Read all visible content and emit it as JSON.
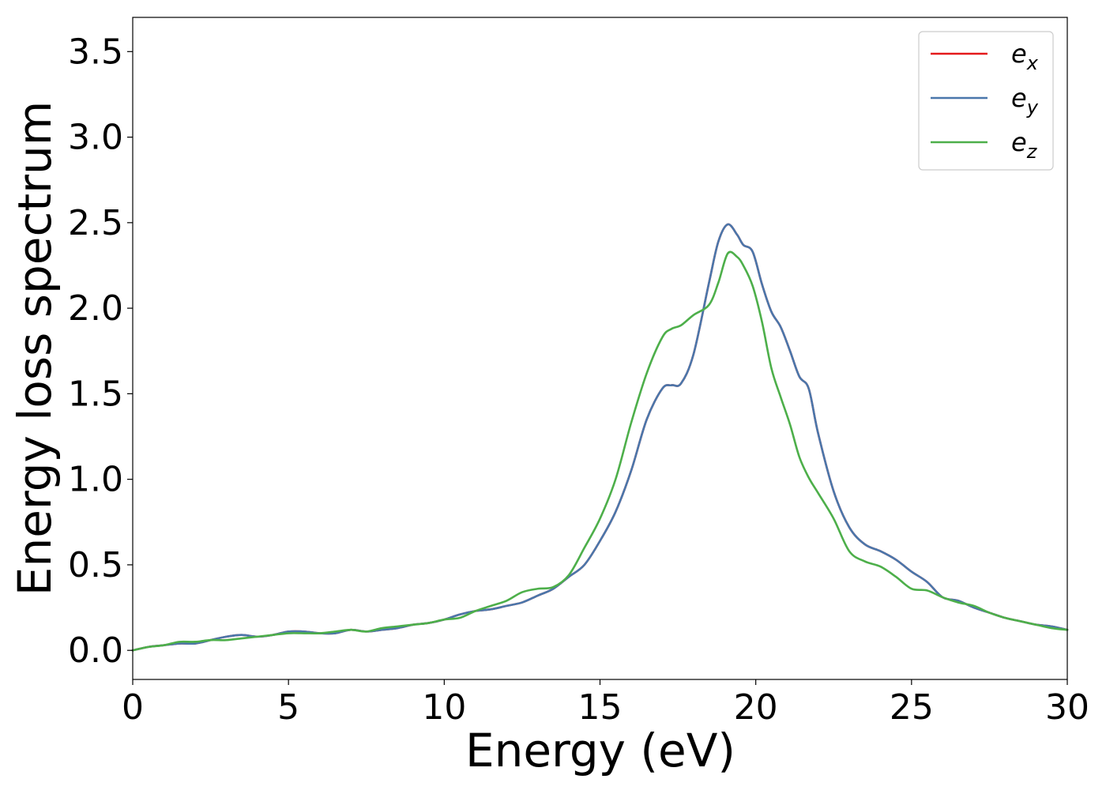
{
  "chart_data": {
    "type": "line",
    "title": "",
    "xlabel": "Energy (eV)",
    "ylabel": "Energy loss spectrum",
    "xlim": [
      0,
      30
    ],
    "ylim": [
      -0.17,
      3.7
    ],
    "xticks": [
      0,
      5,
      10,
      15,
      20,
      25,
      30
    ],
    "xtick_labels": [
      "0",
      "5",
      "10",
      "15",
      "20",
      "25",
      "30"
    ],
    "yticks": [
      0.0,
      0.5,
      1.0,
      1.5,
      2.0,
      2.5,
      3.0,
      3.5
    ],
    "ytick_labels": [
      "0.0",
      "0.5",
      "1.0",
      "1.5",
      "2.0",
      "2.5",
      "3.0",
      "3.5"
    ],
    "grid": false,
    "legend_position": "top-right",
    "series": [
      {
        "name": "e_x",
        "legend_base": "e",
        "legend_sub": "x",
        "color": "#e41a1c",
        "x": [
          0,
          0.5,
          1,
          1.5,
          2,
          2.5,
          3,
          3.5,
          4,
          4.5,
          5,
          5.5,
          6,
          6.5,
          7,
          7.5,
          8,
          8.5,
          9,
          9.5,
          10,
          10.5,
          11,
          11.5,
          12,
          12.5,
          13,
          13.5,
          14,
          14.5,
          15,
          15.5,
          16,
          16.5,
          17,
          17.3,
          17.6,
          18,
          18.5,
          18.8,
          19.1,
          19.4,
          19.6,
          19.9,
          20.2,
          20.5,
          20.8,
          21.1,
          21.4,
          21.7,
          22,
          22.5,
          23,
          23.5,
          24,
          24.5,
          25,
          25.5,
          26,
          26.5,
          27,
          27.5,
          28,
          28.5,
          29,
          29.5,
          30
        ],
        "y": [
          0.0,
          0.02,
          0.03,
          0.04,
          0.04,
          0.06,
          0.08,
          0.09,
          0.08,
          0.09,
          0.11,
          0.11,
          0.1,
          0.1,
          0.12,
          0.11,
          0.12,
          0.13,
          0.15,
          0.16,
          0.18,
          0.21,
          0.23,
          0.24,
          0.26,
          0.28,
          0.32,
          0.36,
          0.43,
          0.5,
          0.64,
          0.81,
          1.05,
          1.35,
          1.53,
          1.55,
          1.56,
          1.73,
          2.15,
          2.39,
          2.49,
          2.43,
          2.37,
          2.33,
          2.14,
          1.98,
          1.89,
          1.75,
          1.6,
          1.53,
          1.27,
          0.93,
          0.72,
          0.62,
          0.58,
          0.53,
          0.46,
          0.4,
          0.31,
          0.29,
          0.25,
          0.22,
          0.19,
          0.17,
          0.15,
          0.14,
          0.12
        ]
      },
      {
        "name": "e_y",
        "legend_base": "e",
        "legend_sub": "y",
        "color": "#4a77ab",
        "x": [
          0,
          0.5,
          1,
          1.5,
          2,
          2.5,
          3,
          3.5,
          4,
          4.5,
          5,
          5.5,
          6,
          6.5,
          7,
          7.5,
          8,
          8.5,
          9,
          9.5,
          10,
          10.5,
          11,
          11.5,
          12,
          12.5,
          13,
          13.5,
          14,
          14.5,
          15,
          15.5,
          16,
          16.5,
          17,
          17.3,
          17.6,
          18,
          18.5,
          18.8,
          19.1,
          19.4,
          19.6,
          19.9,
          20.2,
          20.5,
          20.8,
          21.1,
          21.4,
          21.7,
          22,
          22.5,
          23,
          23.5,
          24,
          24.5,
          25,
          25.5,
          26,
          26.5,
          27,
          27.5,
          28,
          28.5,
          29,
          29.5,
          30
        ],
        "y": [
          0.0,
          0.02,
          0.03,
          0.04,
          0.04,
          0.06,
          0.08,
          0.09,
          0.08,
          0.09,
          0.11,
          0.11,
          0.1,
          0.1,
          0.12,
          0.11,
          0.12,
          0.13,
          0.15,
          0.16,
          0.18,
          0.21,
          0.23,
          0.24,
          0.26,
          0.28,
          0.32,
          0.36,
          0.43,
          0.5,
          0.64,
          0.81,
          1.05,
          1.35,
          1.53,
          1.55,
          1.56,
          1.73,
          2.15,
          2.39,
          2.49,
          2.43,
          2.37,
          2.33,
          2.14,
          1.98,
          1.89,
          1.75,
          1.6,
          1.53,
          1.27,
          0.93,
          0.72,
          0.62,
          0.58,
          0.53,
          0.46,
          0.4,
          0.31,
          0.29,
          0.25,
          0.22,
          0.19,
          0.17,
          0.15,
          0.14,
          0.12
        ]
      },
      {
        "name": "e_z",
        "legend_base": "e",
        "legend_sub": "z",
        "color": "#4daf4a",
        "x": [
          0,
          0.5,
          1,
          1.5,
          2,
          2.5,
          3,
          3.5,
          4,
          4.5,
          5,
          5.5,
          6,
          6.5,
          7,
          7.5,
          8,
          8.5,
          9,
          9.5,
          10,
          10.5,
          11,
          11.5,
          12,
          12.5,
          13,
          13.5,
          14,
          14.5,
          15,
          15.5,
          16,
          16.5,
          17,
          17.3,
          17.6,
          18,
          18.5,
          18.8,
          19.1,
          19.4,
          19.6,
          19.9,
          20.2,
          20.5,
          20.8,
          21.1,
          21.4,
          21.7,
          22,
          22.5,
          23,
          23.5,
          24,
          24.5,
          25,
          25.5,
          26,
          26.5,
          27,
          27.5,
          28,
          28.5,
          29,
          29.5,
          30
        ],
        "y": [
          0.0,
          0.02,
          0.03,
          0.05,
          0.05,
          0.06,
          0.06,
          0.07,
          0.08,
          0.09,
          0.1,
          0.1,
          0.1,
          0.11,
          0.12,
          0.11,
          0.13,
          0.14,
          0.15,
          0.16,
          0.18,
          0.19,
          0.23,
          0.26,
          0.29,
          0.34,
          0.36,
          0.37,
          0.44,
          0.6,
          0.77,
          1.0,
          1.33,
          1.62,
          1.83,
          1.88,
          1.9,
          1.96,
          2.02,
          2.15,
          2.32,
          2.3,
          2.25,
          2.13,
          1.92,
          1.65,
          1.48,
          1.32,
          1.13,
          1.01,
          0.92,
          0.77,
          0.58,
          0.52,
          0.49,
          0.43,
          0.36,
          0.35,
          0.31,
          0.28,
          0.26,
          0.22,
          0.19,
          0.17,
          0.15,
          0.13,
          0.12
        ]
      }
    ]
  }
}
